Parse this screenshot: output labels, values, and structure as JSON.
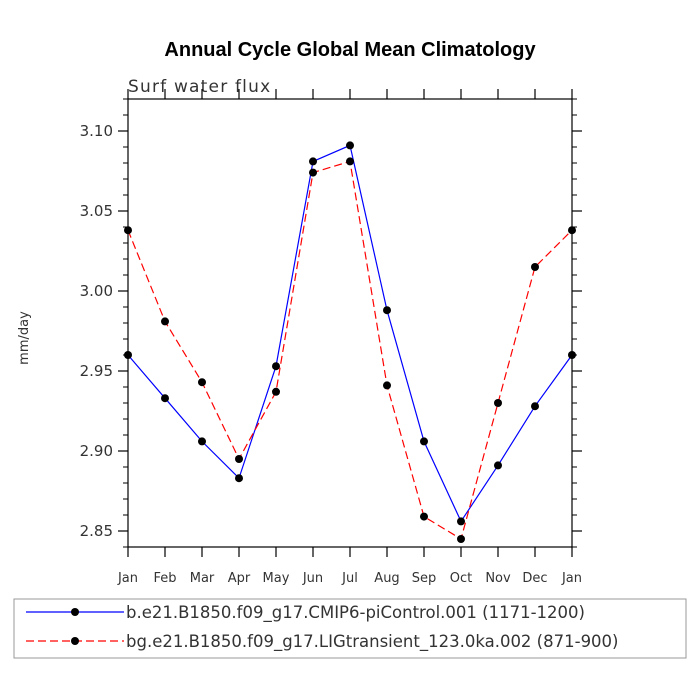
{
  "chart_data": {
    "type": "line",
    "title": "Annual Cycle Global Mean Climatology",
    "subtitle": "Surf water flux",
    "xlabel": "",
    "ylabel": "mm/day",
    "categories": [
      "Jan",
      "Feb",
      "Mar",
      "Apr",
      "May",
      "Jun",
      "Jul",
      "Aug",
      "Sep",
      "Oct",
      "Nov",
      "Dec",
      "Jan"
    ],
    "ylim": [
      2.84,
      3.12
    ],
    "yticks": [
      2.85,
      2.9,
      2.95,
      3.0,
      3.05,
      3.1
    ],
    "ytick_labels": [
      "2.85",
      "2.90",
      "2.95",
      "3.00",
      "3.05",
      "3.10"
    ],
    "grid": false,
    "legend_position": "bottom",
    "series": [
      {
        "name": "b.e21.B1850.f09_g17.CMIP6-piControl.001 (1171-1200)",
        "color": "#0000ff",
        "dash": "solid",
        "values": [
          2.96,
          2.933,
          2.906,
          2.883,
          2.953,
          3.081,
          3.091,
          2.988,
          2.906,
          2.856,
          2.891,
          2.928,
          2.96
        ]
      },
      {
        "name": "bg.e21.B1850.f09_g17.LIGtransient_123.0ka.002 (871-900)",
        "color": "#ff0000",
        "dash": "dashed",
        "values": [
          3.038,
          2.981,
          2.943,
          2.895,
          2.937,
          3.074,
          3.081,
          2.941,
          2.859,
          2.845,
          2.93,
          3.015,
          3.038
        ]
      }
    ]
  }
}
